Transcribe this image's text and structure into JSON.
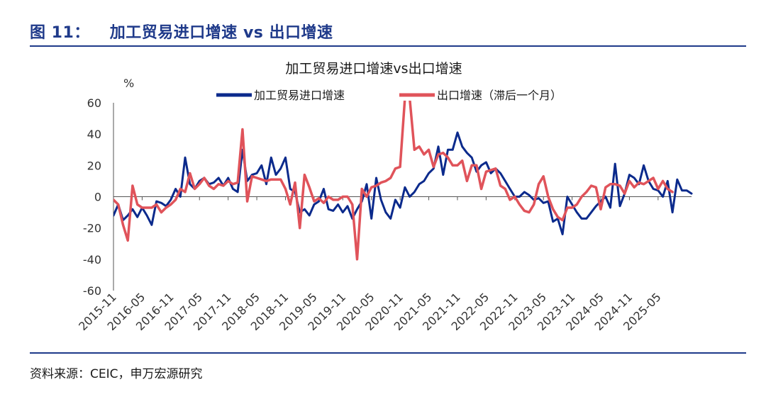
{
  "figure": {
    "label": "图 11：",
    "title": "加工贸易进口增速 vs 出口增速",
    "source": "资料来源：CEIC，申万宏源研究"
  },
  "colors": {
    "blue": "#0b2a8c",
    "red": "#e0535a",
    "accent": "#1f3a8a"
  },
  "chart_data": {
    "type": "line",
    "title": "加工贸易进口增速vs出口增速",
    "ylabel": "%",
    "ylim": [
      -60,
      60
    ],
    "yticks": [
      60,
      40,
      20,
      0,
      -20,
      -40,
      -60
    ],
    "xtick_labels": [
      "2015-11",
      "2016-05",
      "2016-11",
      "2017-05",
      "2017-11",
      "2018-05",
      "2018-11",
      "2019-05",
      "2019-11",
      "2020-05",
      "2020-11",
      "2021-05",
      "2021-11",
      "2022-05",
      "2022-11",
      "2023-05",
      "2023-11",
      "2024-05",
      "2024-11",
      "2025-05"
    ],
    "x_start": "2015-11",
    "legend_position": "top-center",
    "series": [
      {
        "name": "加工贸易进口增速",
        "values": [
          -12,
          -5,
          -15,
          -12,
          -8,
          -13,
          -7,
          -12,
          -18,
          -3,
          -4,
          -6,
          -2,
          5,
          0,
          25,
          8,
          5,
          10,
          12,
          8,
          9,
          12,
          7,
          12,
          5,
          3,
          30,
          10,
          14,
          15,
          20,
          8,
          25,
          14,
          18,
          25,
          5,
          3,
          -10,
          -8,
          -12,
          -5,
          -3,
          5,
          -8,
          -9,
          -5,
          -10,
          -6,
          -14,
          -8,
          -3,
          8,
          -14,
          12,
          -2,
          -10,
          -14,
          -2,
          -7,
          6,
          0,
          3,
          8,
          10,
          15,
          18,
          32,
          14,
          30,
          30,
          41,
          32,
          28,
          25,
          16,
          20,
          22,
          15,
          18,
          15,
          10,
          5,
          0,
          0,
          3,
          1,
          -2,
          -1,
          -4,
          -3,
          -16,
          -14,
          -24,
          0,
          -5,
          -10,
          -14,
          -14,
          -10,
          -6,
          -3,
          0,
          -7,
          21,
          -6,
          2,
          14,
          12,
          8,
          20,
          10,
          5,
          4,
          0,
          10,
          -10,
          11,
          4,
          4,
          2
        ],
        "color": "#0b2a8c"
      },
      {
        "name": "出口增速（滞后一个月）",
        "values": [
          -2,
          -5,
          -18,
          -28,
          7,
          -5,
          -7,
          -7,
          -7,
          -5,
          -10,
          -7,
          -5,
          -2,
          5,
          3,
          15,
          5,
          8,
          12,
          7,
          5,
          8,
          7,
          10,
          8,
          9,
          43,
          -3,
          13,
          12,
          11,
          10,
          11,
          11,
          11,
          5,
          -5,
          9,
          -20,
          14,
          6,
          -3,
          -1,
          -4,
          0,
          -2,
          -2,
          0,
          0,
          -5,
          -40,
          5,
          0,
          6,
          7,
          9,
          10,
          12,
          18,
          19,
          63,
          63,
          30,
          32,
          27,
          30,
          19,
          27,
          28,
          25,
          20,
          20,
          23,
          10,
          20,
          20,
          5,
          16,
          17,
          18,
          7,
          5,
          -2,
          0,
          -5,
          -9,
          -10,
          -5,
          8,
          13,
          0,
          -8,
          -13,
          -15,
          -7,
          -7,
          -5,
          0,
          3,
          7,
          6,
          -8,
          6,
          8,
          8,
          7,
          2,
          10,
          6,
          9,
          8,
          10,
          12,
          5,
          10,
          5,
          3
        ]
      }
    ]
  }
}
